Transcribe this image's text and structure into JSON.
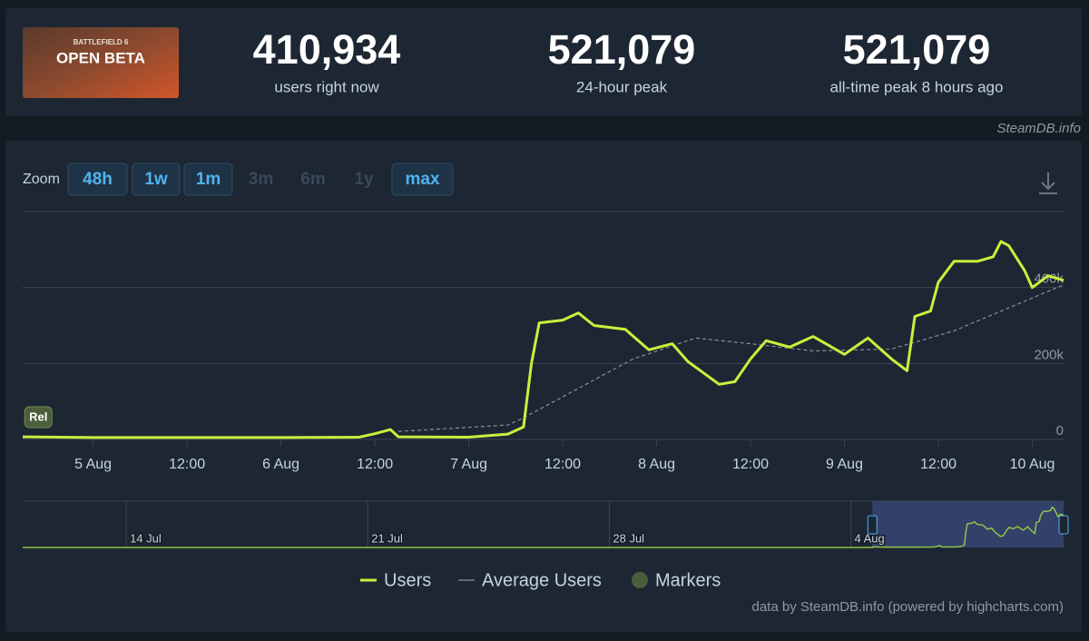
{
  "header": {
    "image_text": [
      "BATTLEFIELD 6",
      "OPEN BETA"
    ],
    "stats": [
      {
        "value": "410,934",
        "label": "users right now"
      },
      {
        "value": "521,079",
        "label": "24-hour peak"
      },
      {
        "value": "521,079",
        "label": "all-time peak 8 hours ago"
      }
    ],
    "brand": "SteamDB.info"
  },
  "chart_data": {
    "type": "line",
    "zoom": {
      "label": "Zoom",
      "buttons": [
        {
          "text": "48h",
          "enabled": true
        },
        {
          "text": "1w",
          "enabled": true
        },
        {
          "text": "1m",
          "enabled": true
        },
        {
          "text": "3m",
          "enabled": false
        },
        {
          "text": "6m",
          "enabled": false
        },
        {
          "text": "1y",
          "enabled": false
        },
        {
          "text": "max",
          "enabled": true
        }
      ]
    },
    "ylim": [
      0,
      600000
    ],
    "yticks": [
      0,
      {
        "value": 200000,
        "label": "200k"
      },
      {
        "value": 400000,
        "label": "400k"
      }
    ],
    "xlim": [
      "4 Aug 15:00",
      "10 Aug 04:00"
    ],
    "xticks": [
      {
        "value": "5 Aug 00:00",
        "label": "5 Aug"
      },
      {
        "value": "5 Aug 12:00",
        "label": "12:00"
      },
      {
        "value": "6 Aug 00:00",
        "label": "6 Aug"
      },
      {
        "value": "6 Aug 12:00",
        "label": "12:00"
      },
      {
        "value": "7 Aug 00:00",
        "label": "7 Aug"
      },
      {
        "value": "7 Aug 12:00",
        "label": "12:00"
      },
      {
        "value": "8 Aug 00:00",
        "label": "8 Aug"
      },
      {
        "value": "8 Aug 12:00",
        "label": "12:00"
      },
      {
        "value": "9 Aug 00:00",
        "label": "9 Aug"
      },
      {
        "value": "9 Aug 12:00",
        "label": "12:00"
      },
      {
        "value": "10 Aug 00:00",
        "label": "10 Aug"
      }
    ],
    "grid": true,
    "series": [
      {
        "name": "Users",
        "color": "#c8f03c",
        "x": [
          "4 Aug 15:00",
          "5 Aug 00:00",
          "6 Aug 00:00",
          "6 Aug 10:00",
          "6 Aug 12:00",
          "6 Aug 14:00",
          "6 Aug 15:00",
          "7 Aug 00:00",
          "7 Aug 05:00",
          "7 Aug 07:00",
          "7 Aug 08:00",
          "7 Aug 09:00",
          "7 Aug 12:00",
          "7 Aug 14:00",
          "7 Aug 16:00",
          "7 Aug 20:00",
          "7 Aug 23:00",
          "8 Aug 02:00",
          "8 Aug 04:00",
          "8 Aug 08:00",
          "8 Aug 10:00",
          "8 Aug 12:00",
          "8 Aug 14:00",
          "8 Aug 17:00",
          "8 Aug 20:00",
          "9 Aug 00:00",
          "9 Aug 03:00",
          "9 Aug 06:00",
          "9 Aug 08:00",
          "9 Aug 09:00",
          "9 Aug 11:00",
          "9 Aug 12:00",
          "9 Aug 14:00",
          "9 Aug 17:00",
          "9 Aug 19:00",
          "9 Aug 20:00",
          "9 Aug 21:00",
          "9 Aug 23:00",
          "10 Aug 00:00",
          "10 Aug 02:00",
          "10 Aug 04:00"
        ],
        "values": [
          7000,
          5000,
          5000,
          6000,
          15000,
          26000,
          7000,
          6000,
          14000,
          33000,
          200000,
          307000,
          314000,
          333000,
          300000,
          290000,
          236000,
          252000,
          205000,
          145000,
          152000,
          212000,
          260000,
          243000,
          271000,
          224000,
          267000,
          212000,
          181000,
          324000,
          338000,
          414000,
          469000,
          469000,
          481000,
          521079,
          510000,
          445000,
          400000,
          431000,
          419000
        ]
      },
      {
        "name": "Average Users",
        "color": "#8a8f96",
        "dash": true,
        "x": [
          "6 Aug 15:00",
          "7 Aug 05:00",
          "7 Aug 07:00",
          "7 Aug 21:00",
          "8 Aug 05:00",
          "8 Aug 12:00",
          "8 Aug 20:00",
          "9 Aug 06:00",
          "9 Aug 14:00",
          "10 Aug 04:00"
        ],
        "values": [
          21000,
          38000,
          57000,
          212000,
          267000,
          252000,
          233000,
          238000,
          286000,
          407000
        ]
      }
    ],
    "markers": {
      "name": "Markers",
      "color": "#4b5e3c",
      "points": [
        {
          "x": "4 Aug 17:00",
          "label": "Rel"
        }
      ]
    },
    "navigator": {
      "xlim": [
        "11 Jul 00:00",
        "10 Aug 04:00"
      ],
      "xticks": [
        {
          "value": "14 Jul 00:00",
          "label": "14 Jul"
        },
        {
          "value": "21 Jul 00:00",
          "label": "21 Jul"
        },
        {
          "value": "28 Jul 00:00",
          "label": "28 Jul"
        },
        {
          "value": "4 Aug 00:00",
          "label": "4 Aug"
        }
      ]
    },
    "credits": "data by SteamDB.info (powered by highcharts.com)"
  }
}
